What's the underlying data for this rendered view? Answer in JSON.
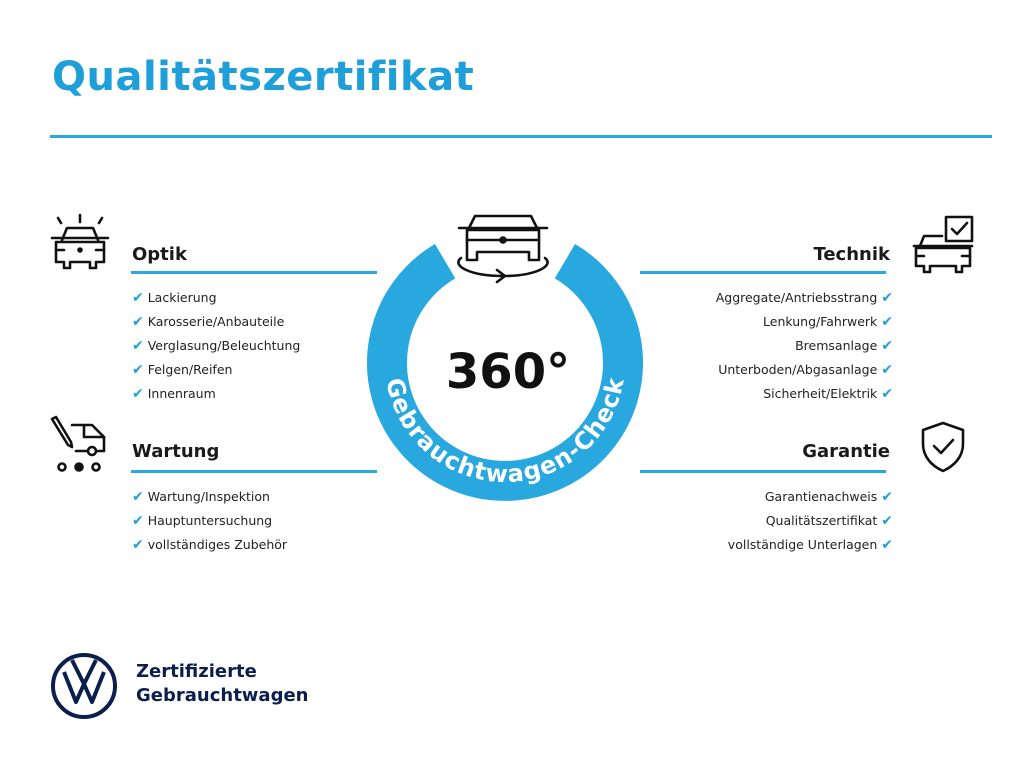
{
  "title": "Qualitätszertifikat",
  "accent_color": "#29a8e0",
  "center": {
    "value": "360°",
    "ring_text": "Gebrauchtwagen-Check",
    "icon": "car-rotate-icon"
  },
  "sections": {
    "optik": {
      "title": "Optik",
      "icon": "car-lights-icon",
      "items": [
        "Lackierung",
        "Karosserie/Anbauteile",
        "Verglasung/Beleuchtung",
        "Felgen/Reifen",
        "Innenraum"
      ]
    },
    "wartung": {
      "title": "Wartung",
      "icon": "service-van-icon",
      "items": [
        "Wartung/Inspektion",
        "Hauptuntersuchung",
        "vollständiges Zubehör"
      ]
    },
    "technik": {
      "title": "Technik",
      "icon": "car-checklist-icon",
      "items": [
        "Aggregate/Antriebsstrang",
        "Lenkung/Fahrwerk",
        "Bremsanlage",
        "Unterboden/Abgasanlage",
        "Sicherheit/Elektrik"
      ]
    },
    "garantie": {
      "title": "Garantie",
      "icon": "shield-check-icon",
      "items": [
        "Garantienachweis",
        "Qualitätszertifikat",
        "vollständige Unterlagen"
      ]
    }
  },
  "check_mark": "✔",
  "footer": {
    "line1": "Zertifizierte",
    "line2": "Gebrauchtwagen",
    "logo": "vw-logo",
    "logo_text": "VW",
    "brand_color": "#0b1f4d"
  }
}
